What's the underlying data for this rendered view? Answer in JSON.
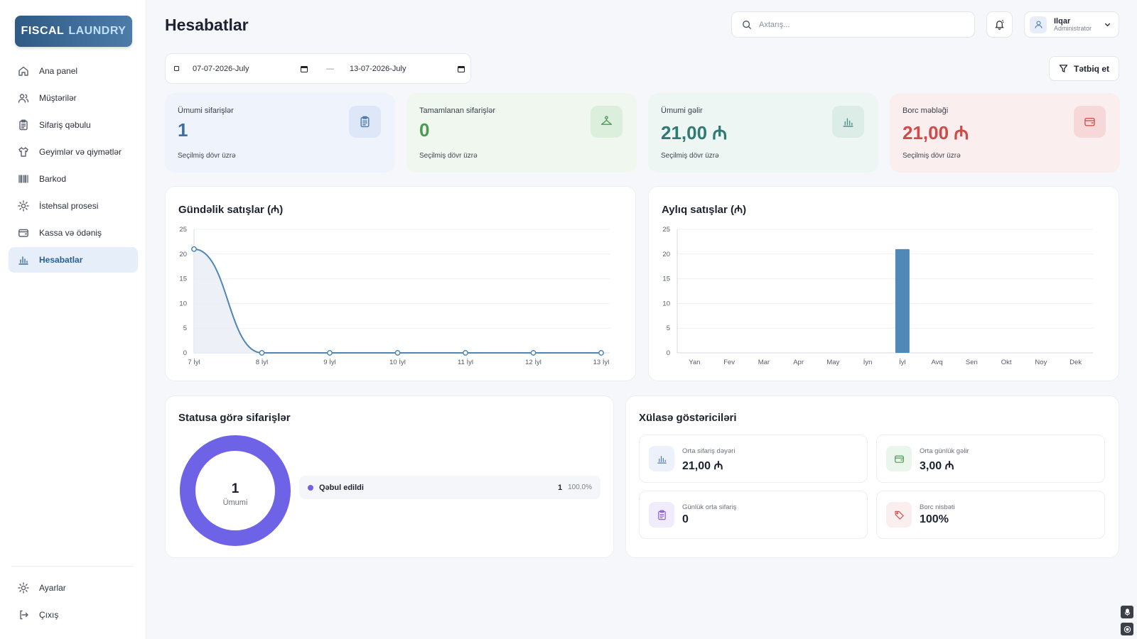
{
  "brand": {
    "part1": "FISCAL",
    "part2": "LAUNDRY"
  },
  "sidebar": {
    "items": [
      {
        "label": "Ana panel",
        "icon": "home-icon"
      },
      {
        "label": "Müştərilər",
        "icon": "users-icon"
      },
      {
        "label": "Sifariş qəbulu",
        "icon": "clipboard-icon"
      },
      {
        "label": "Geyimlər və qiymətlər",
        "icon": "shirt-icon"
      },
      {
        "label": "Barkod",
        "icon": "barcode-icon"
      },
      {
        "label": "İstehsal prosesi",
        "icon": "sun-icon"
      },
      {
        "label": "Kassa və ödəniş",
        "icon": "wallet-icon"
      },
      {
        "label": "Hesabatlar",
        "icon": "bar-chart-icon",
        "active": true
      }
    ],
    "bottom": [
      {
        "label": "Ayarlar",
        "icon": "settings-icon"
      },
      {
        "label": "Çıxış",
        "icon": "logout-icon"
      }
    ]
  },
  "header": {
    "title": "Hesabatlar",
    "search_placeholder": "Axtarış...",
    "user_name": "Ilqar",
    "user_role": "Administrator"
  },
  "filters": {
    "date_from": "07-07-2026-July",
    "date_to": "13-07-2026-July",
    "separator": "—",
    "apply_label": "Tətbiq et"
  },
  "stats": [
    {
      "label": "Ümumi sifarişlər",
      "value": "1",
      "sub": "Seçilmiş dövr üzrə",
      "icon": "clipboard-icon",
      "value_color": "#3f6f9e",
      "bg": "#eef3fc",
      "icon_bg": "#dde7f7",
      "icon_color": "#4f79aa"
    },
    {
      "label": "Tamamlanan sifarişlər",
      "value": "0",
      "sub": "Seçilmiş dövr üzrə",
      "icon": "hanger-icon",
      "value_color": "#4a9a52",
      "bg": "#eff7ef",
      "icon_bg": "#dcefdd",
      "icon_color": "#4f9a58"
    },
    {
      "label": "Ümumi gəlir",
      "value": "21,00 ₼",
      "sub": "Seçilmiş dövr üzrə",
      "icon": "bar-chart-icon",
      "value_color": "#2f7a72",
      "bg": "#eef6f3",
      "icon_bg": "#dcece7",
      "icon_color": "#4f8f86"
    },
    {
      "label": "Borc məbləği",
      "value": "21,00 ₼",
      "sub": "Seçilmiş dövr üzrə",
      "icon": "wallet-icon",
      "value_color": "#d04a48",
      "bg": "#fbeeee",
      "icon_bg": "#f6d8d8",
      "icon_color": "#cf5554"
    }
  ],
  "daily_chart": {
    "title": "Gündəlik satışlar (₼)",
    "chart_data": {
      "type": "area",
      "categories": [
        "7 İyl",
        "8 İyl",
        "9 İyl",
        "10 İyl",
        "11 İyl",
        "12 İyl",
        "13 İyl"
      ],
      "values": [
        21,
        0,
        0,
        0,
        0,
        0,
        0
      ],
      "y_ticks": [
        0,
        5,
        10,
        15,
        20,
        25
      ],
      "ylim": [
        0,
        25
      ],
      "grid": true,
      "color": "#4e86b5"
    }
  },
  "monthly_chart": {
    "title": "Aylıq satışlar (₼)",
    "chart_data": {
      "type": "bar",
      "categories": [
        "Yan",
        "Fev",
        "Mar",
        "Apr",
        "May",
        "İyn",
        "İyl",
        "Avq",
        "Sen",
        "Okt",
        "Noy",
        "Dek"
      ],
      "values": [
        0,
        0,
        0,
        0,
        0,
        0,
        21,
        0,
        0,
        0,
        0,
        0
      ],
      "y_ticks": [
        0,
        5,
        10,
        15,
        20,
        25
      ],
      "ylim": [
        0,
        25
      ],
      "grid": true,
      "color": "#5089b8"
    }
  },
  "status_panel": {
    "title": "Statusa görə sifarişlər",
    "total_value": "1",
    "total_label": "Ümumi",
    "legend": [
      {
        "name": "Qəbul edildi",
        "count": "1",
        "pct": "100.0%",
        "color": "#6e63e6"
      }
    ]
  },
  "summary_panel": {
    "title": "Xülasə göstəriciləri",
    "cards": [
      {
        "label": "Orta sifariş dəyəri",
        "value": "21,00 ₼",
        "icon": "bar-chart-icon",
        "icon_bg": "#edf2fa",
        "icon_color": "#4f7fb2"
      },
      {
        "label": "Orta günlük gəlir",
        "value": "3,00 ₼",
        "icon": "wallet-icon",
        "icon_bg": "#eaf6ec",
        "icon_color": "#4f9a58"
      },
      {
        "label": "Günlük orta sifariş",
        "value": "0",
        "icon": "clipboard-icon",
        "icon_bg": "#f1ecfb",
        "icon_color": "#8d5fd6"
      },
      {
        "label": "Borc nisbəti",
        "value": "100%",
        "icon": "tag-icon",
        "icon_bg": "#fbeeee",
        "icon_color": "#cf5554"
      }
    ]
  }
}
